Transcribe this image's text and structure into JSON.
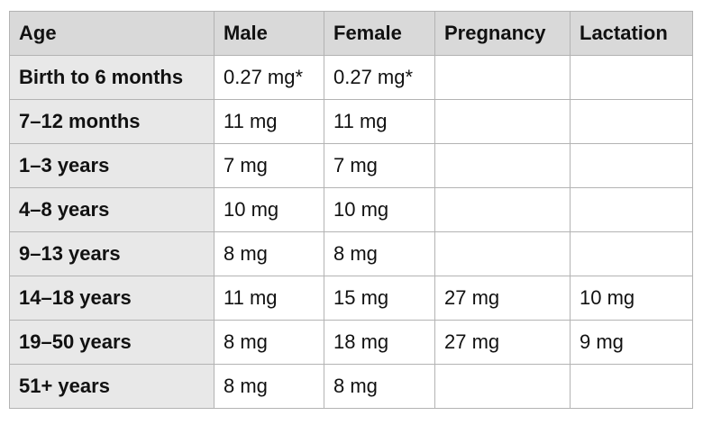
{
  "table": {
    "header": [
      "Age",
      "Male",
      "Female",
      "Pregnancy",
      "Lactation"
    ],
    "rows": [
      [
        "Birth to 6 months",
        "0.27 mg*",
        "0.27 mg*",
        null,
        null
      ],
      [
        "7–12 months",
        "11 mg",
        "11 mg",
        null,
        null
      ],
      [
        "1–3 years",
        "7 mg",
        "7 mg",
        null,
        null
      ],
      [
        "4–8 years",
        "10 mg",
        "10 mg",
        null,
        null
      ],
      [
        "9–13 years",
        "8 mg",
        "8 mg",
        null,
        null
      ],
      [
        "14–18 years",
        "11 mg",
        "15 mg",
        "27 mg",
        "10 mg"
      ],
      [
        "19–50 years",
        "8 mg",
        "18 mg",
        "27 mg",
        "9 mg"
      ],
      [
        "51+ years",
        "8 mg",
        "8 mg",
        null,
        null
      ]
    ]
  }
}
